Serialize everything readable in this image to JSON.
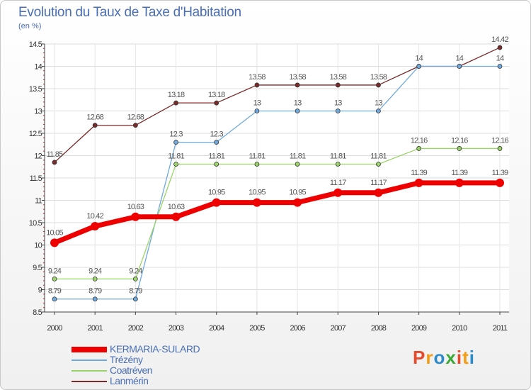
{
  "title": "Evolution du Taux de Taxe d'Habitation",
  "subtitle": "(en %)",
  "logo": {
    "text": "Proxiti",
    "colors": [
      "#e8492a",
      "#f39c12",
      "#2e8bc9",
      "#3aa935",
      "#e8492a",
      "#f39c12",
      "#2e8bc9"
    ]
  },
  "chart_data": {
    "type": "line",
    "x": [
      "2000",
      "2001",
      "2002",
      "2003",
      "2004",
      "2005",
      "2006",
      "2007",
      "2008",
      "2009",
      "2010",
      "2011"
    ],
    "ylim": [
      8.5,
      14.5
    ],
    "yticks": [
      "8.5",
      "9",
      "9.5",
      "10",
      "10.5",
      "11",
      "11.5",
      "12",
      "12.5",
      "13",
      "13.5",
      "14",
      "14.5"
    ],
    "grid": true,
    "legend_position": "bottom-left",
    "series": [
      {
        "name": "Lanmérin",
        "color": "#7a2a2a",
        "width": 1.3,
        "marker": 3,
        "values": [
          11.85,
          12.68,
          12.68,
          13.18,
          13.18,
          13.58,
          13.58,
          13.58,
          13.58,
          14,
          14,
          14.42
        ],
        "labels": [
          "11.85",
          "12.68",
          "12.68",
          "13.18",
          "13.18",
          "13.58",
          "13.58",
          "13.58",
          "13.58",
          "14",
          "14",
          "14.42"
        ]
      },
      {
        "name": "Trézény",
        "color": "#6fa8dc",
        "width": 1.3,
        "marker": 3,
        "values": [
          8.79,
          8.79,
          8.79,
          12.3,
          12.3,
          13,
          13,
          13,
          13,
          14,
          14,
          14
        ],
        "labels": [
          "8.79",
          "8.79",
          "8.79",
          "12.3",
          "12.3",
          "13",
          "13",
          "13",
          "13",
          "",
          "",
          "14"
        ]
      },
      {
        "name": "Coatréven",
        "color": "#9ad468",
        "width": 1.3,
        "marker": 3,
        "values": [
          9.24,
          9.24,
          9.24,
          11.81,
          11.81,
          11.81,
          11.81,
          11.81,
          11.81,
          12.16,
          12.16,
          12.16
        ],
        "labels": [
          "9.24",
          "9.24",
          "9.24",
          "11.81",
          "11.81",
          "11.81",
          "11.81",
          "11.81",
          "11.81",
          "12.16",
          "12.16",
          "12.16"
        ]
      },
      {
        "name": "KERMARIA-SULARD",
        "color": "#ee0000",
        "width": 7,
        "marker": 6,
        "values": [
          10.05,
          10.42,
          10.63,
          10.63,
          10.95,
          10.95,
          10.95,
          11.17,
          11.17,
          11.39,
          11.39,
          11.39
        ],
        "labels": [
          "10.05",
          "10.42",
          "10.63",
          "10.63",
          "10.95",
          "10.95",
          "10.95",
          "11.17",
          "11.17",
          "11.39",
          "11.39",
          "11.39"
        ]
      }
    ],
    "legend": [
      "KERMARIA-SULARD",
      "Trézény",
      "Coatréven",
      "Lanmérin"
    ]
  }
}
